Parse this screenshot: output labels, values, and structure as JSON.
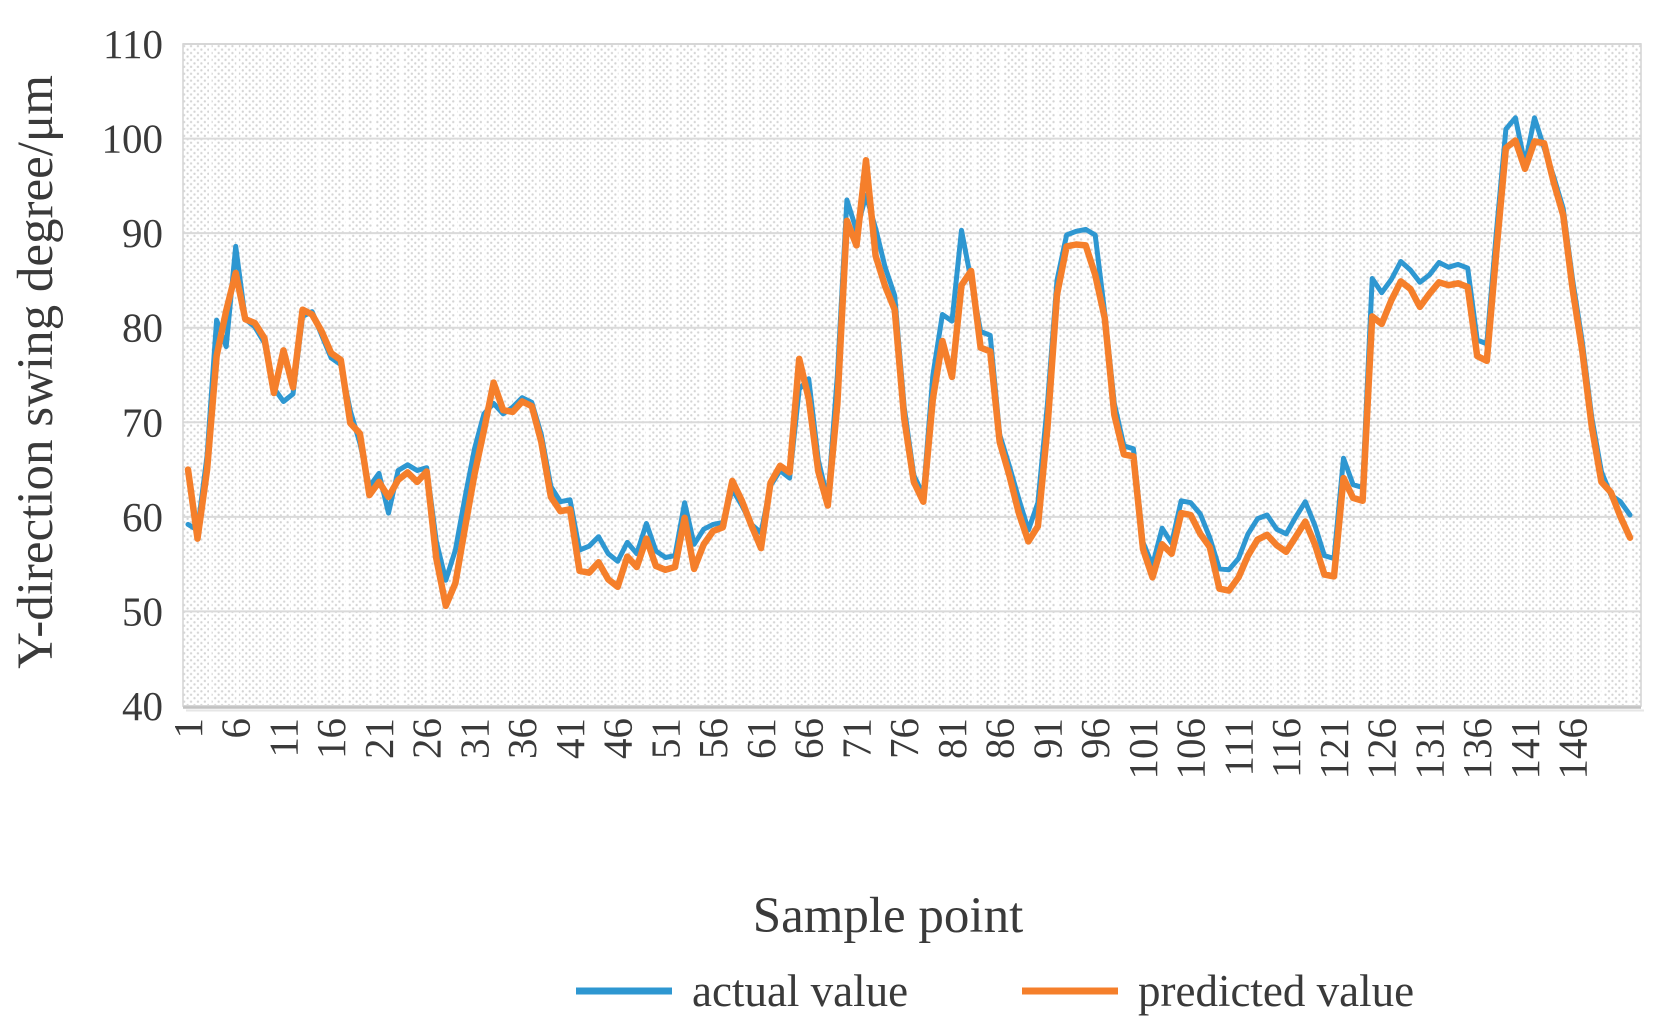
{
  "chart_data": {
    "type": "line",
    "title": "",
    "xlabel": "Sample point",
    "ylabel": "Y-direction swing degree/μm",
    "ylim": [
      40,
      110
    ],
    "y_tick_step": 10,
    "y_tick_labels": [
      "40",
      "50",
      "60",
      "70",
      "80",
      "90",
      "100",
      "110"
    ],
    "x_start": 1,
    "n_points": 152,
    "x_tick_interval": 5,
    "x_tick_labels": [
      "1",
      "6",
      "11",
      "16",
      "21",
      "26",
      "31",
      "36",
      "41",
      "46",
      "51",
      "56",
      "61",
      "66",
      "71",
      "76",
      "81",
      "86",
      "91",
      "96",
      "101",
      "106",
      "111",
      "116",
      "121",
      "126",
      "131",
      "136",
      "141",
      "146"
    ],
    "grid": "horizontal",
    "background_pattern": "diagonal-dot-hatch",
    "legend_position": "bottom-center",
    "colors": {
      "actual": "#2e97d1",
      "predicted": "#f57f2b",
      "gridline": "#dadada",
      "text": "#3a3a3a"
    },
    "series": [
      {
        "name": "actual value",
        "color": "#2e97d1",
        "values": [
          59.2,
          58.6,
          66.5,
          80.8,
          78.0,
          88.6,
          80.9,
          80.1,
          78.4,
          73.6,
          72.2,
          73.0,
          81.2,
          81.7,
          79.2,
          76.8,
          76.1,
          71.2,
          67.8,
          63.2,
          64.6,
          60.4,
          64.9,
          65.5,
          64.9,
          65.2,
          57.4,
          53.3,
          56.5,
          62.0,
          67.2,
          70.9,
          72.0,
          70.9,
          71.6,
          72.6,
          72.1,
          68.7,
          63.2,
          61.6,
          61.8,
          56.5,
          56.9,
          57.9,
          56.1,
          55.3,
          57.3,
          56.1,
          59.3,
          56.4,
          55.7,
          55.9,
          61.5,
          57.1,
          58.7,
          59.2,
          59.4,
          62.9,
          61.2,
          59.2,
          58.3,
          63.3,
          64.9,
          64.1,
          73.5,
          74.6,
          66.0,
          61.8,
          75.0,
          93.5,
          90.3,
          94.0,
          90.5,
          86.4,
          83.4,
          71.6,
          64.4,
          62.3,
          75.0,
          81.4,
          80.7,
          90.3,
          85.0,
          79.6,
          79.2,
          68.7,
          65.4,
          61.9,
          58.6,
          61.5,
          72.0,
          85.0,
          89.8,
          90.2,
          90.4,
          89.8,
          81.5,
          72.0,
          67.5,
          67.2,
          57.3,
          54.9,
          58.8,
          57.2,
          61.7,
          61.5,
          60.3,
          57.8,
          54.5,
          54.4,
          55.6,
          58.2,
          59.8,
          60.2,
          58.7,
          58.2,
          60.0,
          61.6,
          59.1,
          55.9,
          55.6,
          66.2,
          63.4,
          63.1,
          85.2,
          83.7,
          85.1,
          87.0,
          86.1,
          84.8,
          85.6,
          86.9,
          86.4,
          86.7,
          86.3,
          78.7,
          78.3,
          90.0,
          101.0,
          102.2,
          97.3,
          102.2,
          99.0,
          96.0,
          92.6,
          85.0,
          78.5,
          70.5,
          64.8,
          62.3,
          61.6,
          60.2
        ]
      },
      {
        "name": "predicted value",
        "color": "#f57f2b",
        "values": [
          65.0,
          57.7,
          65.0,
          77.0,
          81.8,
          85.8,
          80.9,
          80.5,
          78.9,
          73.1,
          77.6,
          73.7,
          81.9,
          81.4,
          79.6,
          77.3,
          76.6,
          69.9,
          68.8,
          62.3,
          63.7,
          62.1,
          63.9,
          64.7,
          63.7,
          64.8,
          55.6,
          50.6,
          53.0,
          58.8,
          64.5,
          69.2,
          74.2,
          71.3,
          71.1,
          72.2,
          71.7,
          67.9,
          62.1,
          60.6,
          60.8,
          54.3,
          54.1,
          55.2,
          53.4,
          52.6,
          55.8,
          54.7,
          57.7,
          54.8,
          54.4,
          54.7,
          59.9,
          54.5,
          57.1,
          58.5,
          58.9,
          63.8,
          61.7,
          59.1,
          56.7,
          63.6,
          65.4,
          64.7,
          76.7,
          72.5,
          64.8,
          61.2,
          72.0,
          91.3,
          88.7,
          97.7,
          87.6,
          84.4,
          81.9,
          70.4,
          63.7,
          61.6,
          72.5,
          78.6,
          74.8,
          84.5,
          86.0,
          77.9,
          77.5,
          67.9,
          64.4,
          60.4,
          57.4,
          59.0,
          69.5,
          83.5,
          88.6,
          88.8,
          88.7,
          85.6,
          81.0,
          70.8,
          66.6,
          66.4,
          56.6,
          53.6,
          57.1,
          56.1,
          60.4,
          60.2,
          58.2,
          56.8,
          52.4,
          52.2,
          53.6,
          55.9,
          57.6,
          58.1,
          57.0,
          56.3,
          57.9,
          59.5,
          57.1,
          53.9,
          53.7,
          64.1,
          62.0,
          61.7,
          81.2,
          80.4,
          82.9,
          84.9,
          84.1,
          82.2,
          83.6,
          84.8,
          84.5,
          84.7,
          84.3,
          77.0,
          76.5,
          88.0,
          99.0,
          99.8,
          96.8,
          99.7,
          99.5,
          95.4,
          91.9,
          84.0,
          77.5,
          69.5,
          63.7,
          62.6,
          60.0,
          57.8
        ]
      }
    ]
  }
}
